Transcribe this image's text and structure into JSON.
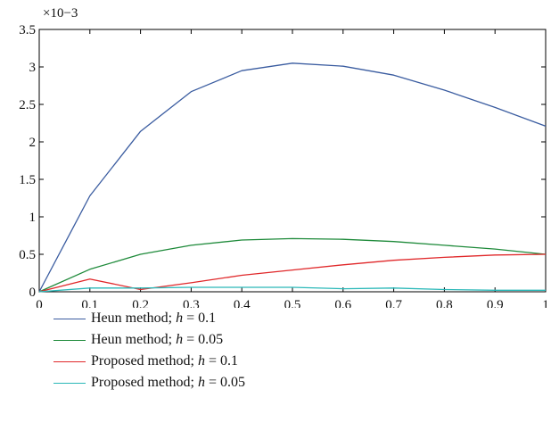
{
  "chart_data": {
    "type": "line",
    "title": "",
    "xlabel": "",
    "ylabel": "",
    "exponent_label": "×10−3",
    "xlim": [
      0,
      1
    ],
    "ylim": [
      0,
      3.5
    ],
    "x_ticks": [
      "0",
      "0.1",
      "0.2",
      "0.3",
      "0.4",
      "0.5",
      "0.6",
      "0.7",
      "0.8",
      "0.9",
      "1"
    ],
    "y_ticks": [
      "0",
      "0.5",
      "1",
      "1.5",
      "2",
      "2.5",
      "3",
      "3.5"
    ],
    "grid": false,
    "legend_position": "bottom",
    "x": [
      0,
      0.1,
      0.2,
      0.3,
      0.4,
      0.5,
      0.6,
      0.7,
      0.8,
      0.9,
      1.0
    ],
    "series": [
      {
        "name": "Heun method; ",
        "h_text": "h",
        "h_value": " = 0.1",
        "color": "#3a5ca0",
        "values": [
          0,
          1.28,
          2.14,
          2.67,
          2.95,
          3.05,
          3.01,
          2.89,
          2.69,
          2.46,
          2.21
        ]
      },
      {
        "name": "Heun method; ",
        "h_text": "h",
        "h_value": " = 0.05",
        "color": "#1e8a3a",
        "values": [
          0,
          0.3,
          0.5,
          0.62,
          0.69,
          0.71,
          0.7,
          0.67,
          0.62,
          0.57,
          0.5
        ]
      },
      {
        "name": "Proposed method; ",
        "h_text": "h",
        "h_value": " = 0.1",
        "color": "#e0282a",
        "values": [
          0,
          0.17,
          0.03,
          0.12,
          0.22,
          0.29,
          0.36,
          0.42,
          0.46,
          0.49,
          0.5
        ]
      },
      {
        "name": "Proposed method; ",
        "h_text": "h",
        "h_value": " = 0.05",
        "color": "#2ab8b8",
        "values": [
          0,
          0.05,
          0.05,
          0.06,
          0.06,
          0.06,
          0.04,
          0.05,
          0.03,
          0.02,
          0.02
        ]
      }
    ]
  }
}
